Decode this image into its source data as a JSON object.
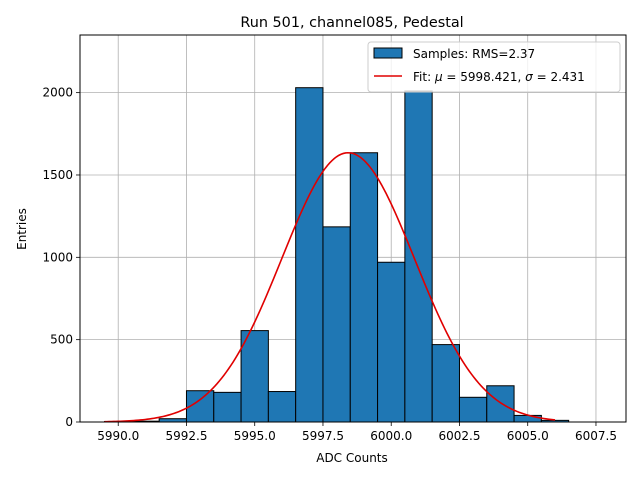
{
  "chart_data": {
    "type": "bar",
    "title": "Run 501, channel085, Pedestal",
    "xlabel": "ADC Counts",
    "ylabel": "Entries",
    "xlim": [
      5988.6,
      6008.6
    ],
    "ylim": [
      0,
      2350
    ],
    "xticks": [
      5990.0,
      5992.5,
      5995.0,
      5997.5,
      6000.0,
      6002.5,
      6005.0,
      6007.5
    ],
    "xtick_labels": [
      "5990.0",
      "5992.5",
      "5995.0",
      "5997.5",
      "6000.0",
      "6002.5",
      "6005.0",
      "6007.5"
    ],
    "yticks": [
      0,
      500,
      1000,
      1500,
      2000
    ],
    "ytick_labels": [
      "0",
      "500",
      "1000",
      "1500",
      "2000"
    ],
    "grid": true,
    "legend_position": "top-right",
    "histogram": {
      "name": "Samples: RMS=2.37",
      "color": "#1f77b4",
      "edge_color": "#000000",
      "bin_edges": [
        5989.5,
        5990.5,
        5991.5,
        5992.5,
        5993.5,
        5994.5,
        5995.5,
        5996.5,
        5997.5,
        5998.5,
        5999.5,
        6000.5,
        6001.5,
        6002.5,
        6003.5,
        6004.5,
        6005.5,
        6006.5
      ],
      "counts": [
        3,
        5,
        20,
        190,
        180,
        555,
        185,
        2030,
        1185,
        1635,
        970,
        2010,
        470,
        150,
        220,
        40,
        10
      ]
    },
    "fit": {
      "name": "Fit: μ = 5998.421, σ = 2.431",
      "label_prefix": "Fit: ",
      "mu_symbol": "μ",
      "mu_text": " = 5998.421, ",
      "sigma_symbol": "σ",
      "sigma_text": " = 2.431",
      "color": "#e00000",
      "mu": 5998.421,
      "sigma": 2.431,
      "amplitude": 1635,
      "x_range": [
        5989.5,
        6006.0
      ]
    }
  }
}
